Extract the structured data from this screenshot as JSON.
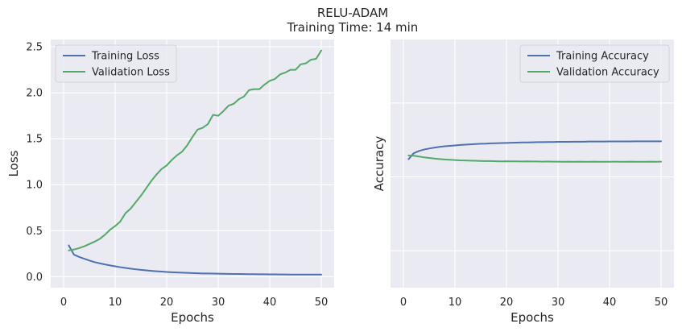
{
  "figure": {
    "title": "RELU-ADAM",
    "subtitle": "Training Time: 14 min"
  },
  "colors": {
    "blue": "#4c72b0",
    "green": "#55a868",
    "panel": "#eaeaf2",
    "grid": "#ffffff"
  },
  "chart_data": [
    {
      "type": "line",
      "xlabel": "Epochs",
      "ylabel": "Loss",
      "xlim": [
        -2.5,
        52.5
      ],
      "ylim": [
        -0.12,
        2.58
      ],
      "xticks": [
        0,
        10,
        20,
        30,
        40,
        50
      ],
      "xtick_labels": [
        "0",
        "10",
        "20",
        "30",
        "40",
        "50"
      ],
      "yticks": [
        0.0,
        0.5,
        1.0,
        1.5,
        2.0,
        2.5
      ],
      "ytick_labels": [
        "0.0",
        "0.5",
        "1.0",
        "1.5",
        "2.0",
        "2.5"
      ],
      "grid": true,
      "legend_position": "top-left",
      "x": [
        1,
        2,
        3,
        4,
        5,
        6,
        7,
        8,
        9,
        10,
        11,
        12,
        13,
        14,
        15,
        16,
        17,
        18,
        19,
        20,
        21,
        22,
        23,
        24,
        25,
        26,
        27,
        28,
        29,
        30,
        31,
        32,
        33,
        34,
        35,
        36,
        37,
        38,
        39,
        40,
        41,
        42,
        43,
        44,
        45,
        46,
        47,
        48,
        49,
        50
      ],
      "series": [
        {
          "name": "Training Loss",
          "color": "#4c72b0",
          "values": [
            0.34,
            0.24,
            0.215,
            0.195,
            0.175,
            0.158,
            0.145,
            0.133,
            0.122,
            0.112,
            0.103,
            0.095,
            0.087,
            0.08,
            0.074,
            0.068,
            0.063,
            0.059,
            0.055,
            0.051,
            0.048,
            0.045,
            0.043,
            0.041,
            0.039,
            0.037,
            0.035,
            0.034,
            0.033,
            0.032,
            0.031,
            0.03,
            0.029,
            0.029,
            0.028,
            0.027,
            0.027,
            0.026,
            0.026,
            0.025,
            0.025,
            0.024,
            0.024,
            0.023,
            0.023,
            0.023,
            0.022,
            0.022,
            0.022,
            0.022
          ]
        },
        {
          "name": "Validation Loss",
          "color": "#55a868",
          "values": [
            0.285,
            0.295,
            0.31,
            0.33,
            0.355,
            0.38,
            0.41,
            0.455,
            0.51,
            0.55,
            0.6,
            0.69,
            0.74,
            0.81,
            0.88,
            0.96,
            1.04,
            1.11,
            1.17,
            1.21,
            1.27,
            1.32,
            1.36,
            1.43,
            1.52,
            1.6,
            1.62,
            1.66,
            1.76,
            1.75,
            1.8,
            1.86,
            1.88,
            1.93,
            1.96,
            2.03,
            2.04,
            2.04,
            2.09,
            2.13,
            2.15,
            2.2,
            2.22,
            2.25,
            2.25,
            2.31,
            2.32,
            2.36,
            2.37,
            2.46
          ]
        }
      ]
    },
    {
      "type": "line",
      "xlabel": "Epochs",
      "ylabel": "Accuracy",
      "xlim": [
        -2.5,
        52.5
      ],
      "ylim": [
        0.0,
        1.68
      ],
      "xticks": [
        0,
        10,
        20,
        30,
        40,
        50
      ],
      "xtick_labels": [
        "0",
        "10",
        "20",
        "30",
        "40",
        "50"
      ],
      "yticks": [
        0.25,
        0.75,
        1.25
      ],
      "ytick_labels": [],
      "grid": true,
      "legend_position": "top-right",
      "x": [
        1,
        2,
        3,
        4,
        5,
        6,
        7,
        8,
        9,
        10,
        11,
        12,
        13,
        14,
        15,
        16,
        17,
        18,
        19,
        20,
        21,
        22,
        23,
        24,
        25,
        26,
        27,
        28,
        29,
        30,
        31,
        32,
        33,
        34,
        35,
        36,
        37,
        38,
        39,
        40,
        41,
        42,
        43,
        44,
        45,
        46,
        47,
        48,
        49,
        50
      ],
      "series": [
        {
          "name": "Training Accuracy",
          "color": "#4c72b0",
          "values": [
            0.87,
            0.91,
            0.925,
            0.935,
            0.942,
            0.948,
            0.953,
            0.957,
            0.96,
            0.963,
            0.966,
            0.968,
            0.97,
            0.972,
            0.974,
            0.975,
            0.977,
            0.978,
            0.979,
            0.98,
            0.981,
            0.982,
            0.983,
            0.983,
            0.984,
            0.985,
            0.985,
            0.986,
            0.986,
            0.987,
            0.987,
            0.987,
            0.988,
            0.988,
            0.988,
            0.989,
            0.989,
            0.989,
            0.989,
            0.99,
            0.99,
            0.99,
            0.99,
            0.99,
            0.991,
            0.991,
            0.991,
            0.991,
            0.991,
            0.991
          ]
        },
        {
          "name": "Validation Accuracy",
          "color": "#55a868",
          "values": [
            0.895,
            0.893,
            0.888,
            0.882,
            0.878,
            0.874,
            0.871,
            0.868,
            0.866,
            0.864,
            0.862,
            0.861,
            0.86,
            0.859,
            0.858,
            0.857,
            0.857,
            0.856,
            0.855,
            0.856,
            0.855,
            0.855,
            0.854,
            0.855,
            0.854,
            0.854,
            0.853,
            0.854,
            0.853,
            0.853,
            0.852,
            0.853,
            0.852,
            0.853,
            0.852,
            0.852,
            0.853,
            0.852,
            0.852,
            0.852,
            0.853,
            0.852,
            0.852,
            0.853,
            0.852,
            0.852,
            0.852,
            0.853,
            0.852,
            0.853
          ]
        }
      ]
    }
  ]
}
